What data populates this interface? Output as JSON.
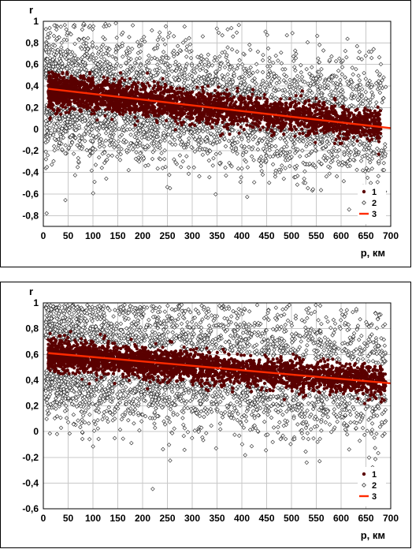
{
  "chart_data": [
    {
      "type": "scatter",
      "ylabel": "r",
      "xlabel": "p, км",
      "xlim": [
        0,
        700
      ],
      "ylim": [
        -0.9,
        1.0
      ],
      "x_ticks": [
        0,
        50,
        100,
        150,
        200,
        250,
        300,
        350,
        400,
        450,
        500,
        550,
        600,
        650,
        700
      ],
      "x_tick_labels": [
        "0",
        "50",
        "100",
        "150",
        "200",
        "250",
        "300",
        "350",
        "400",
        "450",
        "500",
        "550",
        "600",
        "650",
        "700"
      ],
      "y_ticks": [
        1,
        0.8,
        0.6,
        0.4,
        0.2,
        0,
        -0.2,
        -0.4,
        -0.6,
        -0.8
      ],
      "y_tick_labels": [
        "1",
        "0,8",
        "0,6",
        "0,4",
        "0,2",
        "0",
        "-0,2",
        "-0,4",
        "-0,6",
        "-0,8"
      ],
      "grid": true,
      "legend_position": "bottom-right",
      "series": [
        {
          "name": "1",
          "marker": "filled-circle",
          "color": "#5a0000",
          "cloud": {
            "x_range": [
              10,
              680
            ],
            "y_mean_at_0": 0.37,
            "y_mean_at_700": 0.02,
            "spread": 0.1
          }
        },
        {
          "name": "2",
          "marker": "open-diamond",
          "color": "#000000",
          "cloud": {
            "x_range": [
              5,
              690
            ],
            "y_mean_at_0": 0.35,
            "y_mean_at_700": 0.05,
            "spread": 0.32
          }
        },
        {
          "name": "3",
          "marker": "line",
          "color": "#ff2a00",
          "x": [
            10,
            700
          ],
          "y": [
            0.375,
            0.01
          ]
        }
      ]
    },
    {
      "type": "scatter",
      "ylabel": "r",
      "xlabel": "p, км",
      "xlim": [
        0,
        700
      ],
      "ylim": [
        -0.6,
        1.0
      ],
      "x_ticks": [
        0,
        50,
        100,
        150,
        200,
        250,
        300,
        350,
        400,
        450,
        500,
        550,
        600,
        650,
        700
      ],
      "x_tick_labels": [
        "0",
        "50",
        "100",
        "150",
        "200",
        "250",
        "300",
        "350",
        "400",
        "450",
        "500",
        "550",
        "600",
        "650",
        "700"
      ],
      "y_ticks": [
        1,
        0.8,
        0.6,
        0.4,
        0.2,
        0,
        -0.2,
        -0.4,
        -0.6
      ],
      "y_tick_labels": [
        "1",
        "0,8",
        "0,6",
        "0,4",
        "0,2",
        "0",
        "-0,2",
        "-0,4",
        "-0,6"
      ],
      "grid": true,
      "legend_position": "bottom-right",
      "series": [
        {
          "name": "1",
          "marker": "filled-circle",
          "color": "#5a0000",
          "cloud": {
            "x_range": [
              10,
              690
            ],
            "y_mean_at_0": 0.6,
            "y_mean_at_700": 0.38,
            "spread": 0.08
          }
        },
        {
          "name": "2",
          "marker": "open-diamond",
          "color": "#000000",
          "cloud": {
            "x_range": [
              5,
              690
            ],
            "y_mean_at_0": 0.6,
            "y_mean_at_700": 0.4,
            "spread": 0.26
          }
        },
        {
          "name": "3",
          "marker": "line",
          "color": "#ff2a00",
          "x": [
            10,
            700
          ],
          "y": [
            0.61,
            0.375
          ]
        }
      ]
    }
  ]
}
